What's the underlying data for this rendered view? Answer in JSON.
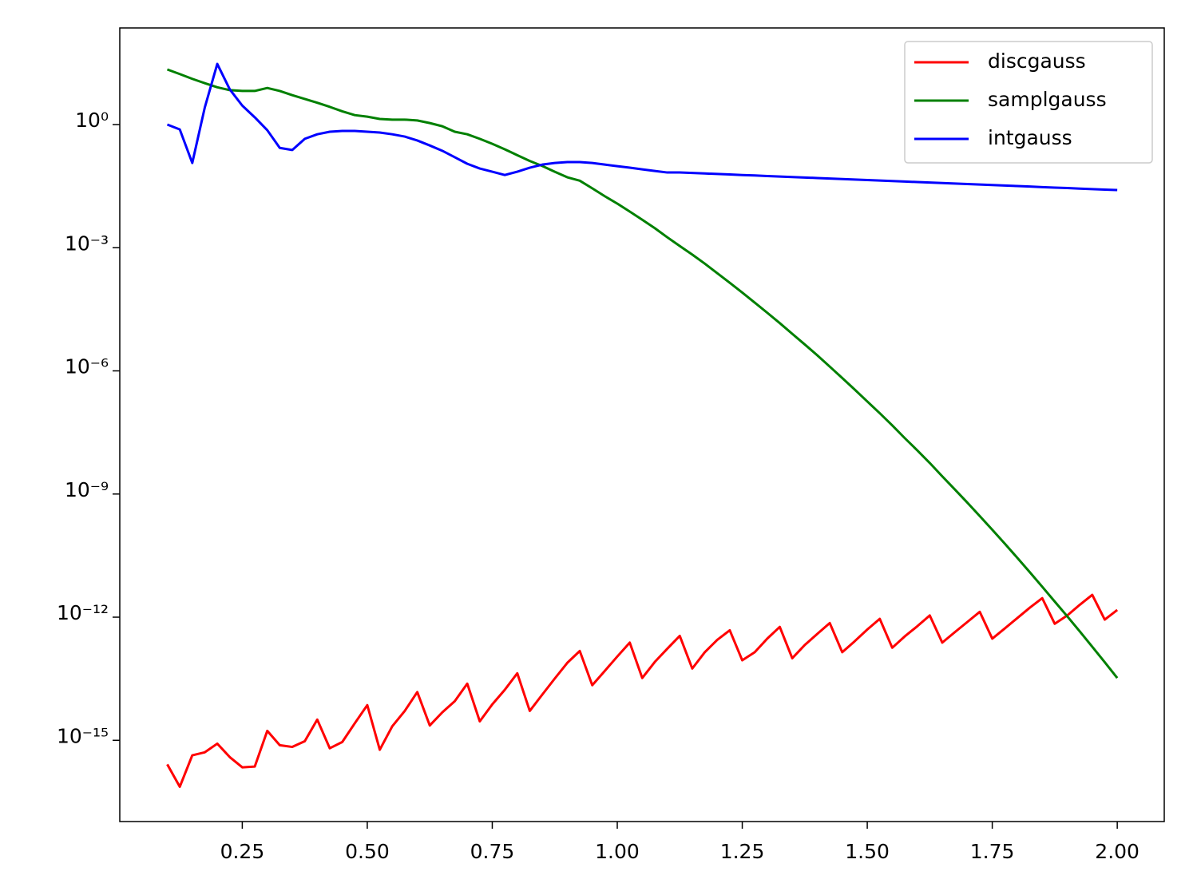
{
  "chart_data": {
    "type": "line",
    "yscale": "log",
    "legend": "upper right",
    "x": [
      0.1,
      0.125,
      0.15,
      0.175,
      0.2,
      0.225,
      0.25,
      0.275,
      0.3,
      0.325,
      0.35,
      0.375,
      0.4,
      0.425,
      0.45,
      0.475,
      0.5,
      0.525,
      0.55,
      0.575,
      0.6,
      0.625,
      0.65,
      0.675,
      0.7,
      0.725,
      0.75,
      0.775,
      0.8,
      0.825,
      0.85,
      0.875,
      0.9,
      0.925,
      0.95,
      0.975,
      1.0,
      1.025,
      1.05,
      1.075,
      1.1,
      1.125,
      1.15,
      1.175,
      1.2,
      1.225,
      1.25,
      1.275,
      1.3,
      1.325,
      1.35,
      1.375,
      1.4,
      1.425,
      1.45,
      1.475,
      1.5,
      1.525,
      1.55,
      1.575,
      1.6,
      1.625,
      1.65,
      1.675,
      1.7,
      1.725,
      1.75,
      1.775,
      1.8,
      1.825,
      1.85,
      1.875,
      1.9,
      1.925,
      1.95,
      1.975,
      2.0
    ],
    "series": [
      {
        "name": "discgauss",
        "color": "#ff0000",
        "values": [
          2.6e-16,
          7.4e-17,
          4.3e-16,
          5.1e-16,
          8.3e-16,
          3.9e-16,
          2.2e-16,
          2.3e-16,
          1.7e-15,
          7.6e-16,
          6.9e-16,
          9.5e-16,
          3.2e-15,
          6.4e-16,
          9.1e-16,
          2.6e-15,
          7.2e-15,
          5.9e-16,
          2.2e-15,
          5.2e-15,
          1.5e-14,
          2.3e-15,
          4.8e-15,
          9e-15,
          2.4e-14,
          2.9e-15,
          7.5e-15,
          1.7e-14,
          4.3e-14,
          5.2e-15,
          1.3e-14,
          3.2e-14,
          7.7e-14,
          1.5e-13,
          2.2e-14,
          4.9e-14,
          1.1e-13,
          2.4e-13,
          3.3e-14,
          8.1e-14,
          1.7e-13,
          3.5e-13,
          5.6e-14,
          1.4e-13,
          2.8e-13,
          4.8e-13,
          8.9e-14,
          1.4e-13,
          3e-13,
          5.8e-13,
          1e-13,
          2.1e-13,
          3.9e-13,
          7.2e-13,
          1.4e-13,
          2.6e-13,
          5e-13,
          9.1e-13,
          1.8e-13,
          3.4e-13,
          6e-13,
          1.1e-12,
          2.4e-13,
          4.3e-13,
          7.6e-13,
          1.35e-12,
          3e-13,
          5.3e-13,
          9.5e-13,
          1.7e-12,
          2.9e-12,
          6.9e-13,
          1.1e-12,
          2e-12,
          3.5e-12,
          8.7e-13,
          1.5e-12
        ]
      },
      {
        "name": "samplgauss",
        "color": "#008000",
        "values": [
          22,
          17,
          13,
          10.2,
          8.1,
          6.9,
          6.6,
          6.6,
          7.8,
          6.6,
          5.2,
          4.2,
          3.4,
          2.7,
          2.1,
          1.7,
          1.56,
          1.37,
          1.32,
          1.32,
          1.26,
          1.09,
          0.91,
          0.67,
          0.58,
          0.45,
          0.34,
          0.25,
          0.18,
          0.13,
          0.098,
          0.071,
          0.052,
          0.043,
          0.028,
          0.018,
          0.0119,
          0.0076,
          0.0048,
          0.003,
          0.0018,
          0.0011,
          0.00068,
          0.00041,
          0.00024,
          0.00014,
          8.1e-05,
          4.6e-05,
          2.6e-05,
          1.46e-05,
          8e-06,
          4.4e-06,
          2.4e-06,
          1.27e-06,
          6.7e-07,
          3.5e-07,
          1.8e-07,
          9.3e-08,
          4.7e-08,
          2.3e-08,
          1.16e-08,
          5.7e-09,
          2.7e-09,
          1.3e-09,
          6.2e-10,
          2.9e-10,
          1.35e-10,
          6.2e-11,
          2.8e-11,
          1.25e-11,
          5.5e-12,
          2.4e-12,
          1.05e-12,
          4.5e-13,
          1.9e-13,
          8e-14,
          3.3e-14
        ]
      },
      {
        "name": "intgauss",
        "color": "#0000ff",
        "values": [
          1.0,
          0.76,
          0.116,
          2.6,
          30,
          7.2,
          2.9,
          1.5,
          0.73,
          0.27,
          0.24,
          0.45,
          0.58,
          0.67,
          0.7,
          0.7,
          0.67,
          0.64,
          0.58,
          0.51,
          0.41,
          0.31,
          0.23,
          0.16,
          0.111,
          0.085,
          0.071,
          0.059,
          0.071,
          0.089,
          0.106,
          0.116,
          0.122,
          0.122,
          0.116,
          0.106,
          0.097,
          0.089,
          0.081,
          0.074,
          0.068,
          0.068,
          0.0662,
          0.0644,
          0.0626,
          0.0608,
          0.0591,
          0.0575,
          0.0559,
          0.0543,
          0.0528,
          0.0513,
          0.0499,
          0.0485,
          0.0472,
          0.0459,
          0.0446,
          0.0433,
          0.0421,
          0.041,
          0.0398,
          0.0387,
          0.0376,
          0.0366,
          0.0356,
          0.0346,
          0.0336,
          0.0327,
          0.0318,
          0.0309,
          0.03,
          0.0292,
          0.0284,
          0.0276,
          0.0268,
          0.0261,
          0.0254
        ]
      }
    ],
    "xlim": [
      0.005,
      2.094
    ],
    "xticks": [
      0.25,
      {
        "value": 0.5,
        "label": "0.50"
      },
      0.75,
      {
        "value": 1.0,
        "label": "1.00"
      },
      1.25,
      {
        "value": 1.5,
        "label": "1.50"
      },
      1.75,
      {
        "value": 2.0,
        "label": "2.00"
      }
    ],
    "ylim": [
      1.05e-17,
      226
    ],
    "yticks": [
      {
        "value": 1e-15,
        "label": "10⁻¹⁵"
      },
      {
        "value": 1e-12,
        "label": "10⁻¹²"
      },
      {
        "value": 1e-09,
        "label": "10⁻⁹"
      },
      {
        "value": 1e-06,
        "label": "10⁻⁶"
      },
      {
        "value": 0.001,
        "label": "10⁻³"
      },
      {
        "value": 1,
        "label": "10⁰"
      }
    ]
  }
}
